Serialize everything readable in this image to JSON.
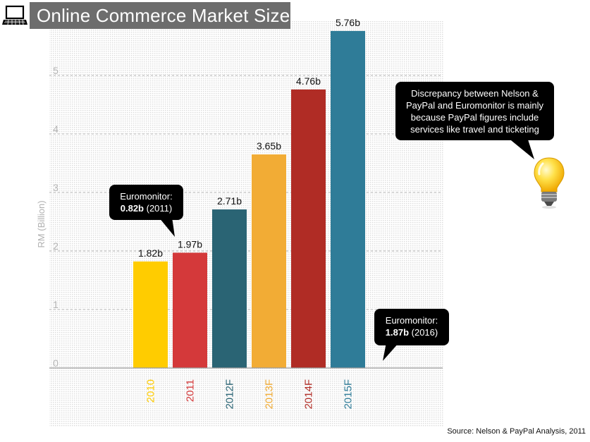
{
  "header": {
    "title": "Online Commerce Market Size"
  },
  "icons": {
    "laptop": "laptop-icon",
    "lightbulb": "lightbulb-icon"
  },
  "chart_data": {
    "type": "bar",
    "title": "Online Commerce Market Size",
    "xlabel": "",
    "ylabel": "RM (Billion)",
    "ylim": [
      0,
      6
    ],
    "yticks": [
      "0",
      "1",
      "2",
      "3",
      "4",
      "5"
    ],
    "grid": true,
    "categories": [
      "2010",
      "2011",
      "2012F",
      "2013F",
      "2014F",
      "2015F"
    ],
    "values": [
      1.82,
      1.97,
      2.71,
      3.65,
      4.76,
      5.76
    ],
    "value_labels": [
      "1.82b",
      "1.97b",
      "2.71b",
      "3.65b",
      "4.76b",
      "5.76b"
    ],
    "colors": [
      "#ffcc00",
      "#d4393a",
      "#2a6474",
      "#f2ac35",
      "#b02c25",
      "#2f7c98"
    ],
    "annotations": {
      "euromonitor_2011": {
        "line1": "Euromonitor:",
        "value": "0.82b",
        "year": "(2011)"
      },
      "euromonitor_2016": {
        "line1": "Euromonitor:",
        "value": "1.87b",
        "year": "(2016)"
      },
      "discrepancy": {
        "line1": "Discrepancy between Nelson &",
        "line2": "PayPal and Euromonitor  is  mainly",
        "line3": "because PayPal figures include",
        "line4": "services like travel and ticketing"
      }
    }
  },
  "footer": {
    "source": "Source: Nelson & PayPal Analysis, 2011"
  }
}
